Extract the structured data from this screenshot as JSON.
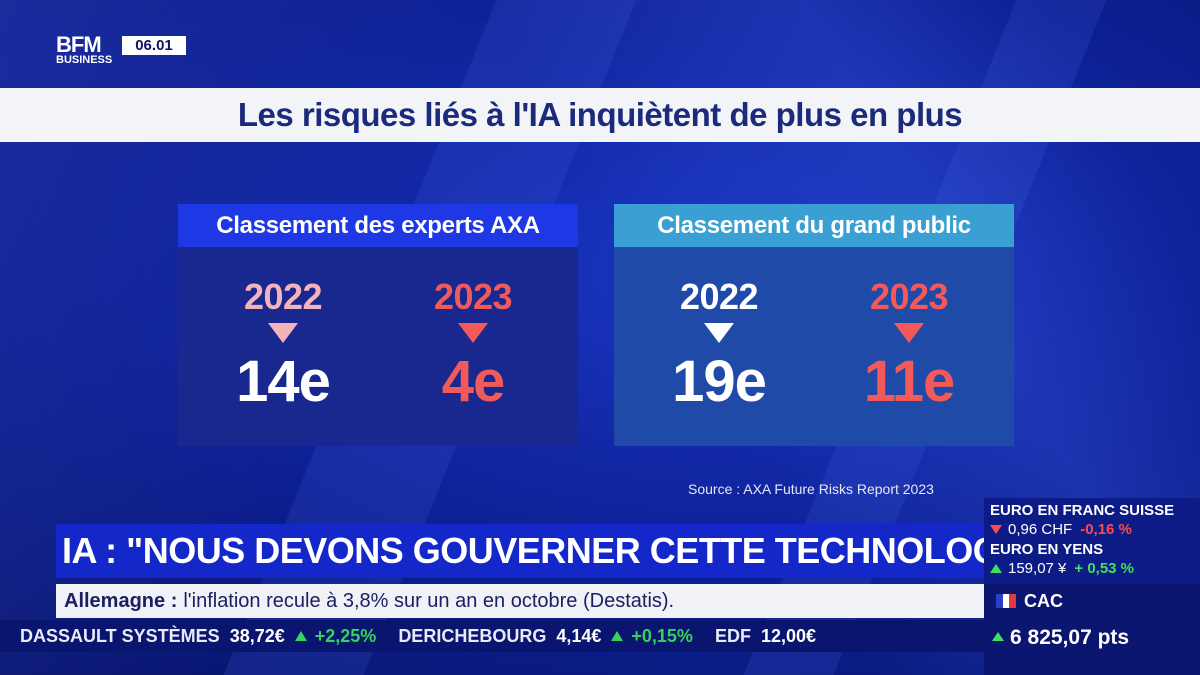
{
  "channel": {
    "logo_line1": "BFM",
    "logo_line2": "BUSINESS",
    "time": "06.01"
  },
  "title": "Les risques liés à l'IA inquiètent de plus en plus",
  "panels": {
    "experts": {
      "header": "Classement des experts AXA",
      "year_left": "2022",
      "rank_left": "14e",
      "year_right": "2023",
      "rank_right": "4e"
    },
    "public": {
      "header": "Classement du grand public",
      "year_left": "2022",
      "rank_left": "19e",
      "year_right": "2023",
      "rank_right": "11e"
    }
  },
  "source": "Source : AXA Future Risks Report 2023",
  "headline": "IA : \"NOUS DEVONS GOUVERNER CETTE TECHNOLOGIE\"",
  "newsline": {
    "country": "Allemagne :",
    "text": "l'inflation recule à 3,8% sur un an en octobre (Destatis)."
  },
  "ticker": [
    {
      "name": "DASSAULT SYSTÈMES",
      "price": "38,72€",
      "change": "+2,25%"
    },
    {
      "name": "DERICHEBOURG",
      "price": "4,14€",
      "change": "+0,15%"
    },
    {
      "name": "EDF",
      "price": "12,00€",
      "change": ""
    }
  ],
  "market": {
    "fx1": {
      "label": "EURO EN FRANC SUISSE",
      "value": "0,96 CHF",
      "change": "-0,16 %"
    },
    "fx2": {
      "label": "EURO EN YENS",
      "value": "159,07 ¥",
      "change": "+ 0,53 %"
    },
    "index": {
      "name": "CAC",
      "value": "6 825,07 pts"
    }
  },
  "colors": {
    "panel_experts_header": "#1e38e6",
    "panel_public_header": "#3aa0d4",
    "rank_2023": "#f25a5a",
    "year_2022_experts": "#f4b3b8",
    "positive": "#35d35a",
    "negative": "#ff4a4a"
  }
}
